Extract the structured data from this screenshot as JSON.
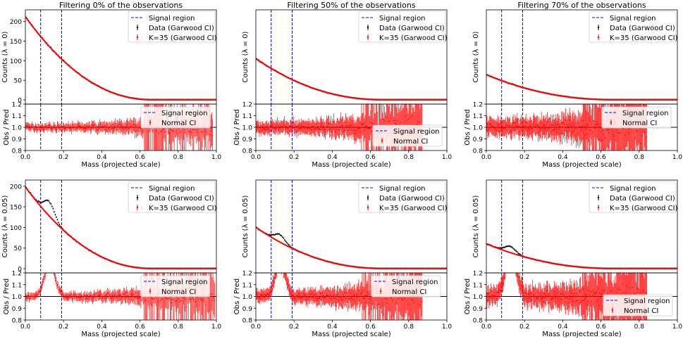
{
  "colors": {
    "data": "#000000",
    "model": "#ff0000",
    "signal": "#0000ff",
    "axis": "#000000"
  },
  "shared": {
    "xlabel": "Mass (projected scale)",
    "x_ticks": [
      "0.0",
      "0.2",
      "0.4",
      "0.6",
      "0.8",
      "1.0"
    ],
    "ratio_ylabel": "Obs / Pred",
    "ratio_yticks": [
      "0.8",
      "0.9",
      "1.0",
      "1.1",
      "1.2"
    ],
    "legend_signal": "Signal region",
    "legend_data": "Data (Garwood CI)",
    "legend_model": "K=35 (Garwood CI)",
    "legend_normal": "Normal CI"
  },
  "chart_data": [
    {
      "type": "line",
      "title": "Filtering 0% of the observations",
      "ylabel": "Counts (λ = 0)",
      "yticks": [
        "0",
        "50",
        "100",
        "150",
        "200"
      ],
      "show_yticks": true,
      "xlim": [
        0,
        1
      ],
      "ylim": [
        0,
        230
      ],
      "signal_region": [
        0.08,
        0.19
      ],
      "peak_amplitude": 0,
      "background_start": 212,
      "decay_scale": 0.2,
      "ratio_noise": 0.03,
      "ratio_cut": 0.62,
      "ratio_end": 0.98,
      "ratio_legend_top": true
    },
    {
      "type": "line",
      "title": "Filtering 50% of the observations",
      "ylabel": "Counts (λ = 0)",
      "yticks": [],
      "show_yticks": false,
      "xlim": [
        0,
        1
      ],
      "ylim": [
        0,
        230
      ],
      "signal_region": [
        0.08,
        0.19
      ],
      "peak_amplitude": 0,
      "background_start": 105,
      "decay_scale": 0.2,
      "ratio_noise": 0.05,
      "ratio_cut": 0.55,
      "ratio_end": 0.87,
      "ratio_legend_top": false
    },
    {
      "type": "line",
      "title": "Filtering 70% of the observations",
      "ylabel": "Counts (λ = 0)",
      "yticks": [],
      "show_yticks": false,
      "xlim": [
        0,
        1
      ],
      "ylim": [
        0,
        230
      ],
      "signal_region": [
        0.08,
        0.19
      ],
      "peak_amplitude": 0,
      "background_start": 64,
      "decay_scale": 0.2,
      "ratio_noise": 0.07,
      "ratio_cut": 0.5,
      "ratio_end": 0.84,
      "ratio_legend_top": true
    },
    {
      "type": "line",
      "title": "",
      "ylabel": "Counts (λ = 0.05)",
      "yticks": [
        "0",
        "50",
        "100",
        "150",
        "200"
      ],
      "show_yticks": true,
      "xlim": [
        0,
        1
      ],
      "ylim": [
        0,
        215
      ],
      "signal_region": [
        0.08,
        0.19
      ],
      "peak_amplitude": 35,
      "background_start": 198,
      "decay_scale": 0.2,
      "ratio_noise": 0.03,
      "ratio_cut": 0.62,
      "ratio_end": 0.99,
      "ratio_legend_top": true
    },
    {
      "type": "line",
      "title": "",
      "ylabel": "Counts (λ = 0.05)",
      "yticks": [],
      "show_yticks": false,
      "xlim": [
        0,
        1
      ],
      "ylim": [
        0,
        215
      ],
      "signal_region": [
        0.08,
        0.19
      ],
      "peak_amplitude": 18,
      "background_start": 100,
      "decay_scale": 0.2,
      "ratio_noise": 0.05,
      "ratio_cut": 0.55,
      "ratio_end": 0.87,
      "ratio_legend_top": true
    },
    {
      "type": "line",
      "title": "",
      "ylabel": "Counts (λ = 0.05)",
      "yticks": [],
      "show_yticks": false,
      "xlim": [
        0,
        1
      ],
      "ylim": [
        0,
        215
      ],
      "signal_region": [
        0.08,
        0.19
      ],
      "peak_amplitude": 15,
      "background_start": 60,
      "decay_scale": 0.2,
      "ratio_noise": 0.07,
      "ratio_cut": 0.5,
      "ratio_end": 0.84,
      "ratio_legend_top": false
    }
  ]
}
